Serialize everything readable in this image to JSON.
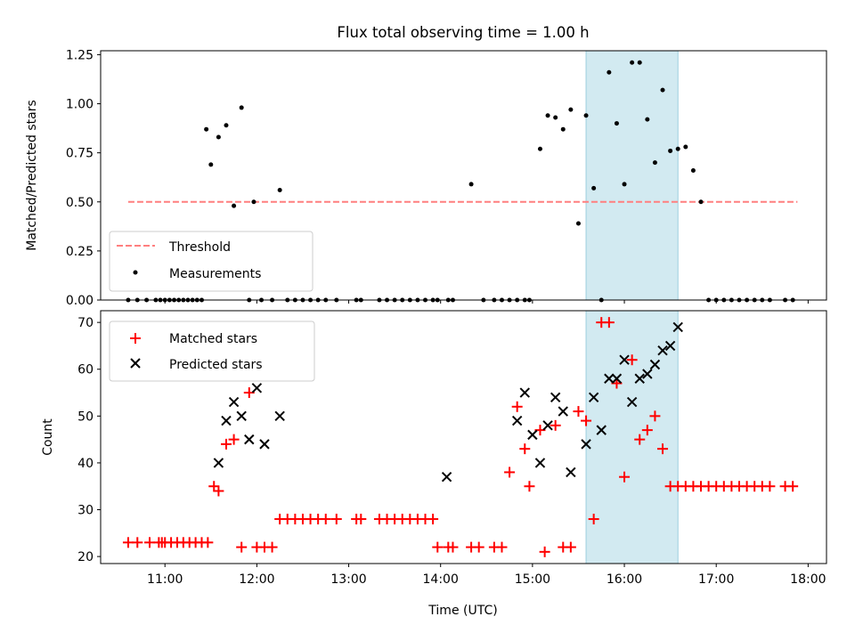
{
  "chart_data": [
    {
      "type": "scatter",
      "title": "Flux total observing time = 1.00 h",
      "xlabel": "",
      "ylabel": "Matched/Predicted stars",
      "xlim": [
        "10:18",
        "18:12"
      ],
      "ylim": [
        0,
        1.27
      ],
      "yticks": [
        "0.00",
        "0.25",
        "0.50",
        "0.75",
        "1.00",
        "1.25"
      ],
      "highlight_span": [
        "15:35",
        "16:35"
      ],
      "legend_position": "lower-left",
      "threshold": {
        "name": "Threshold",
        "x": [
          "10:36",
          "17:53"
        ],
        "y": 0.5,
        "color": "#ff7f7f"
      },
      "series": [
        {
          "name": "Measurements",
          "color": "#000000",
          "x": [
            "10:36",
            "10:42",
            "10:48",
            "10:54",
            "10:57",
            "11:00",
            "11:03",
            "11:06",
            "11:09",
            "11:12",
            "11:15",
            "11:18",
            "11:21",
            "11:24",
            "11:27",
            "11:30",
            "11:35",
            "11:40",
            "11:45",
            "11:50",
            "11:55",
            "11:58",
            "12:03",
            "12:10",
            "12:15",
            "12:20",
            "12:25",
            "12:30",
            "12:35",
            "12:40",
            "12:45",
            "12:52",
            "13:05",
            "13:08",
            "13:20",
            "13:25",
            "13:30",
            "13:35",
            "13:40",
            "13:45",
            "13:50",
            "13:55",
            "13:58",
            "14:05",
            "14:08",
            "14:20",
            "14:28",
            "14:35",
            "14:40",
            "14:45",
            "14:50",
            "14:55",
            "14:58",
            "15:05",
            "15:10",
            "15:15",
            "15:20",
            "15:25",
            "15:30",
            "15:35",
            "15:40",
            "15:45",
            "15:50",
            "15:55",
            "16:00",
            "16:05",
            "16:10",
            "16:15",
            "16:20",
            "16:25",
            "16:30",
            "16:35",
            "16:40",
            "16:45",
            "16:50",
            "16:55",
            "17:00",
            "17:05",
            "17:10",
            "17:15",
            "17:20",
            "17:25",
            "17:30",
            "17:35",
            "17:45",
            "17:50"
          ],
          "y": [
            0,
            0,
            0,
            0,
            0,
            0,
            0,
            0,
            0,
            0,
            0,
            0,
            0,
            0,
            0.87,
            0.69,
            0.83,
            0.89,
            0.48,
            0.98,
            0,
            0.5,
            0,
            0,
            0.56,
            0,
            0,
            0,
            0,
            0,
            0,
            0,
            0,
            0,
            0,
            0,
            0,
            0,
            0,
            0,
            0,
            0,
            0,
            0,
            0,
            0.59,
            0,
            0,
            0,
            0,
            0,
            0,
            0,
            0.77,
            0.94,
            0.93,
            0.87,
            0.97,
            0.39,
            0.94,
            0.57,
            0,
            1.16,
            0.9,
            0.59,
            1.21,
            1.21,
            0.92,
            0.7,
            1.07,
            0.76,
            0.77,
            0.78,
            0.66,
            0.5,
            0,
            0,
            0,
            0,
            0,
            0,
            0,
            0,
            0,
            0,
            0
          ]
        }
      ]
    },
    {
      "type": "scatter",
      "title": "",
      "xlabel": "Time (UTC)",
      "ylabel": "Count",
      "xlim": [
        "10:18",
        "18:12"
      ],
      "ylim": [
        18.5,
        72.5
      ],
      "yticks": [
        "20",
        "30",
        "40",
        "50",
        "60",
        "70"
      ],
      "xticks": [
        "11:00",
        "12:00",
        "13:00",
        "14:00",
        "15:00",
        "16:00",
        "17:00",
        "18:00"
      ],
      "highlight_span": [
        "15:35",
        "16:35"
      ],
      "legend_position": "upper-left",
      "series": [
        {
          "name": "Matched stars",
          "color": "#ff0000",
          "marker": "plus",
          "x": [
            "10:36",
            "10:42",
            "10:50",
            "10:56",
            "10:58",
            "11:00",
            "11:04",
            "11:08",
            "11:12",
            "11:16",
            "11:20",
            "11:24",
            "11:28",
            "11:32",
            "11:35",
            "11:40",
            "11:45",
            "11:50",
            "11:55",
            "12:00",
            "12:05",
            "12:10",
            "12:15",
            "12:20",
            "12:25",
            "12:30",
            "12:35",
            "12:40",
            "12:45",
            "12:52",
            "13:05",
            "13:08",
            "13:20",
            "13:25",
            "13:30",
            "13:35",
            "13:40",
            "13:45",
            "13:50",
            "13:55",
            "13:58",
            "14:05",
            "14:08",
            "14:20",
            "14:25",
            "14:35",
            "14:40",
            "14:45",
            "14:50",
            "14:55",
            "14:58",
            "15:05",
            "15:08",
            "15:15",
            "15:20",
            "15:25",
            "15:30",
            "15:35",
            "15:40",
            "15:45",
            "15:50",
            "15:55",
            "16:00",
            "16:05",
            "16:10",
            "16:15",
            "16:20",
            "16:25",
            "16:30",
            "16:35",
            "16:40",
            "16:45",
            "16:50",
            "16:55",
            "17:00",
            "17:05",
            "17:10",
            "17:15",
            "17:20",
            "17:25",
            "17:30",
            "17:35",
            "17:45",
            "17:50"
          ],
          "y": [
            23,
            23,
            23,
            23,
            23,
            23,
            23,
            23,
            23,
            23,
            23,
            23,
            23,
            35,
            34,
            44,
            45,
            22,
            55,
            22,
            22,
            22,
            28,
            28,
            28,
            28,
            28,
            28,
            28,
            28,
            28,
            28,
            28,
            28,
            28,
            28,
            28,
            28,
            28,
            28,
            22,
            22,
            22,
            22,
            22,
            22,
            22,
            38,
            52,
            43,
            35,
            47,
            21,
            48,
            22,
            22,
            51,
            49,
            28,
            70,
            70,
            57,
            37,
            62,
            45,
            47,
            50,
            43,
            35,
            35,
            35,
            35,
            35,
            35,
            35,
            35,
            35,
            35,
            35,
            35,
            35,
            35,
            35,
            35
          ]
        },
        {
          "name": "Predicted stars",
          "color": "#000000",
          "marker": "x",
          "x": [
            "11:35",
            "11:40",
            "11:45",
            "11:50",
            "11:55",
            "12:00",
            "12:05",
            "12:15",
            "14:04",
            "14:50",
            "14:55",
            "15:00",
            "15:05",
            "15:10",
            "15:15",
            "15:20",
            "15:25",
            "15:35",
            "15:40",
            "15:45",
            "15:50",
            "15:55",
            "16:00",
            "16:05",
            "16:10",
            "16:15",
            "16:20",
            "16:25",
            "16:30",
            "16:35"
          ],
          "y": [
            40,
            49,
            53,
            50,
            45,
            56,
            44,
            50,
            37,
            49,
            55,
            46,
            40,
            48,
            54,
            51,
            38,
            44,
            54,
            47,
            58,
            58,
            62,
            53,
            58,
            59,
            61,
            64,
            65,
            69
          ]
        }
      ]
    }
  ]
}
